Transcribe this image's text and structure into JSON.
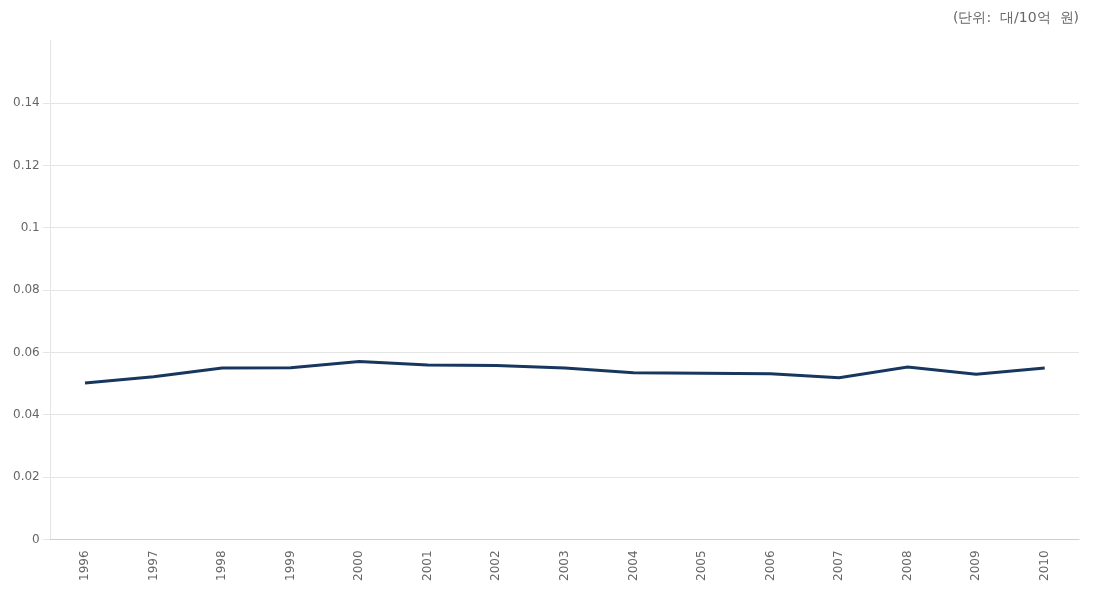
{
  "chart_data": {
    "type": "line",
    "annotations": [
      "(단위:  대/10억  원)"
    ],
    "x": [
      1996,
      1997,
      1998,
      1999,
      2000,
      2001,
      2002,
      2003,
      2004,
      2005,
      2006,
      2007,
      2008,
      2009,
      2010
    ],
    "values": [
      0.0502,
      0.0522,
      0.055,
      0.0551,
      0.0571,
      0.056,
      0.0558,
      0.055,
      0.0535,
      0.0533,
      0.0532,
      0.0519,
      0.0553,
      0.053,
      0.055
    ],
    "color": "#17375E",
    "xlim": [
      1995.5,
      2010.5
    ],
    "xticks": [
      1996,
      1997,
      1998,
      1999,
      2000,
      2001,
      2002,
      2003,
      2004,
      2005,
      2006,
      2007,
      2008,
      2009,
      2010
    ],
    "ylim": [
      0,
      0.16
    ],
    "yticks": [
      0,
      0.02,
      0.04,
      0.06,
      0.08,
      0.1,
      0.12,
      0.14
    ],
    "grid": "y"
  }
}
